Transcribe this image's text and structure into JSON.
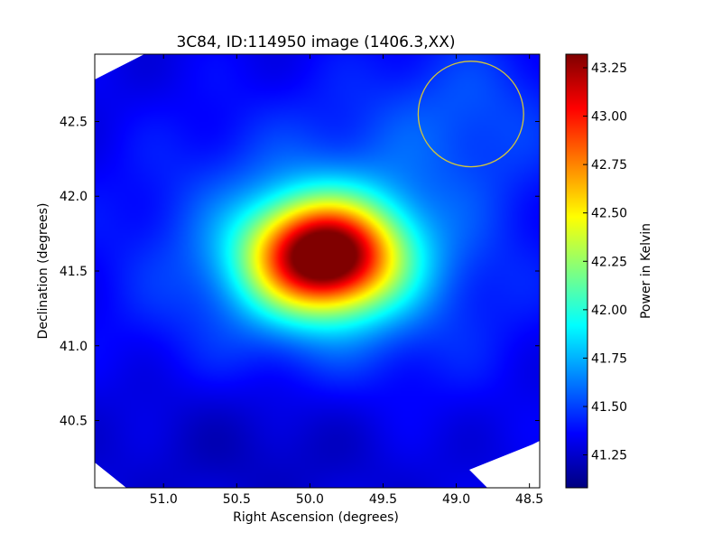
{
  "chart_data": {
    "type": "heatmap",
    "title": "3C84, ID:114950 image (1406.3,XX)",
    "xlabel": "Right Ascension (degrees)",
    "ylabel": "Declination (degrees)",
    "xlim": [
      51.47,
      48.43
    ],
    "ylim": [
      40.05,
      42.95
    ],
    "x_ticks": [
      51.0,
      50.5,
      50.0,
      49.5,
      49.0,
      48.5
    ],
    "x_tick_labels": [
      "51.0",
      "50.5",
      "50.0",
      "49.5",
      "49.0",
      "48.5"
    ],
    "y_ticks": [
      40.5,
      41.0,
      41.5,
      42.0,
      42.5
    ],
    "y_tick_labels": [
      "40.5",
      "41.0",
      "41.5",
      "42.0",
      "42.5"
    ],
    "colorbar": {
      "label": "Power in Kelvin",
      "colormap": "jet",
      "range": [
        41.08,
        43.32
      ],
      "ticks": [
        41.25,
        41.5,
        41.75,
        42.0,
        42.25,
        42.5,
        42.75,
        43.0,
        43.25
      ],
      "tick_labels": [
        "41.25",
        "41.50",
        "41.75",
        "42.00",
        "42.25",
        "42.50",
        "42.75",
        "43.00",
        "43.25"
      ]
    },
    "background_level": 41.3,
    "peak": {
      "ra": 49.9,
      "dec": 41.6,
      "value": 43.32
    },
    "marker_circle": {
      "ra": 48.9,
      "dec": 42.55,
      "radius_deg": 0.36,
      "color": "#d4c63a"
    },
    "grid": false
  }
}
